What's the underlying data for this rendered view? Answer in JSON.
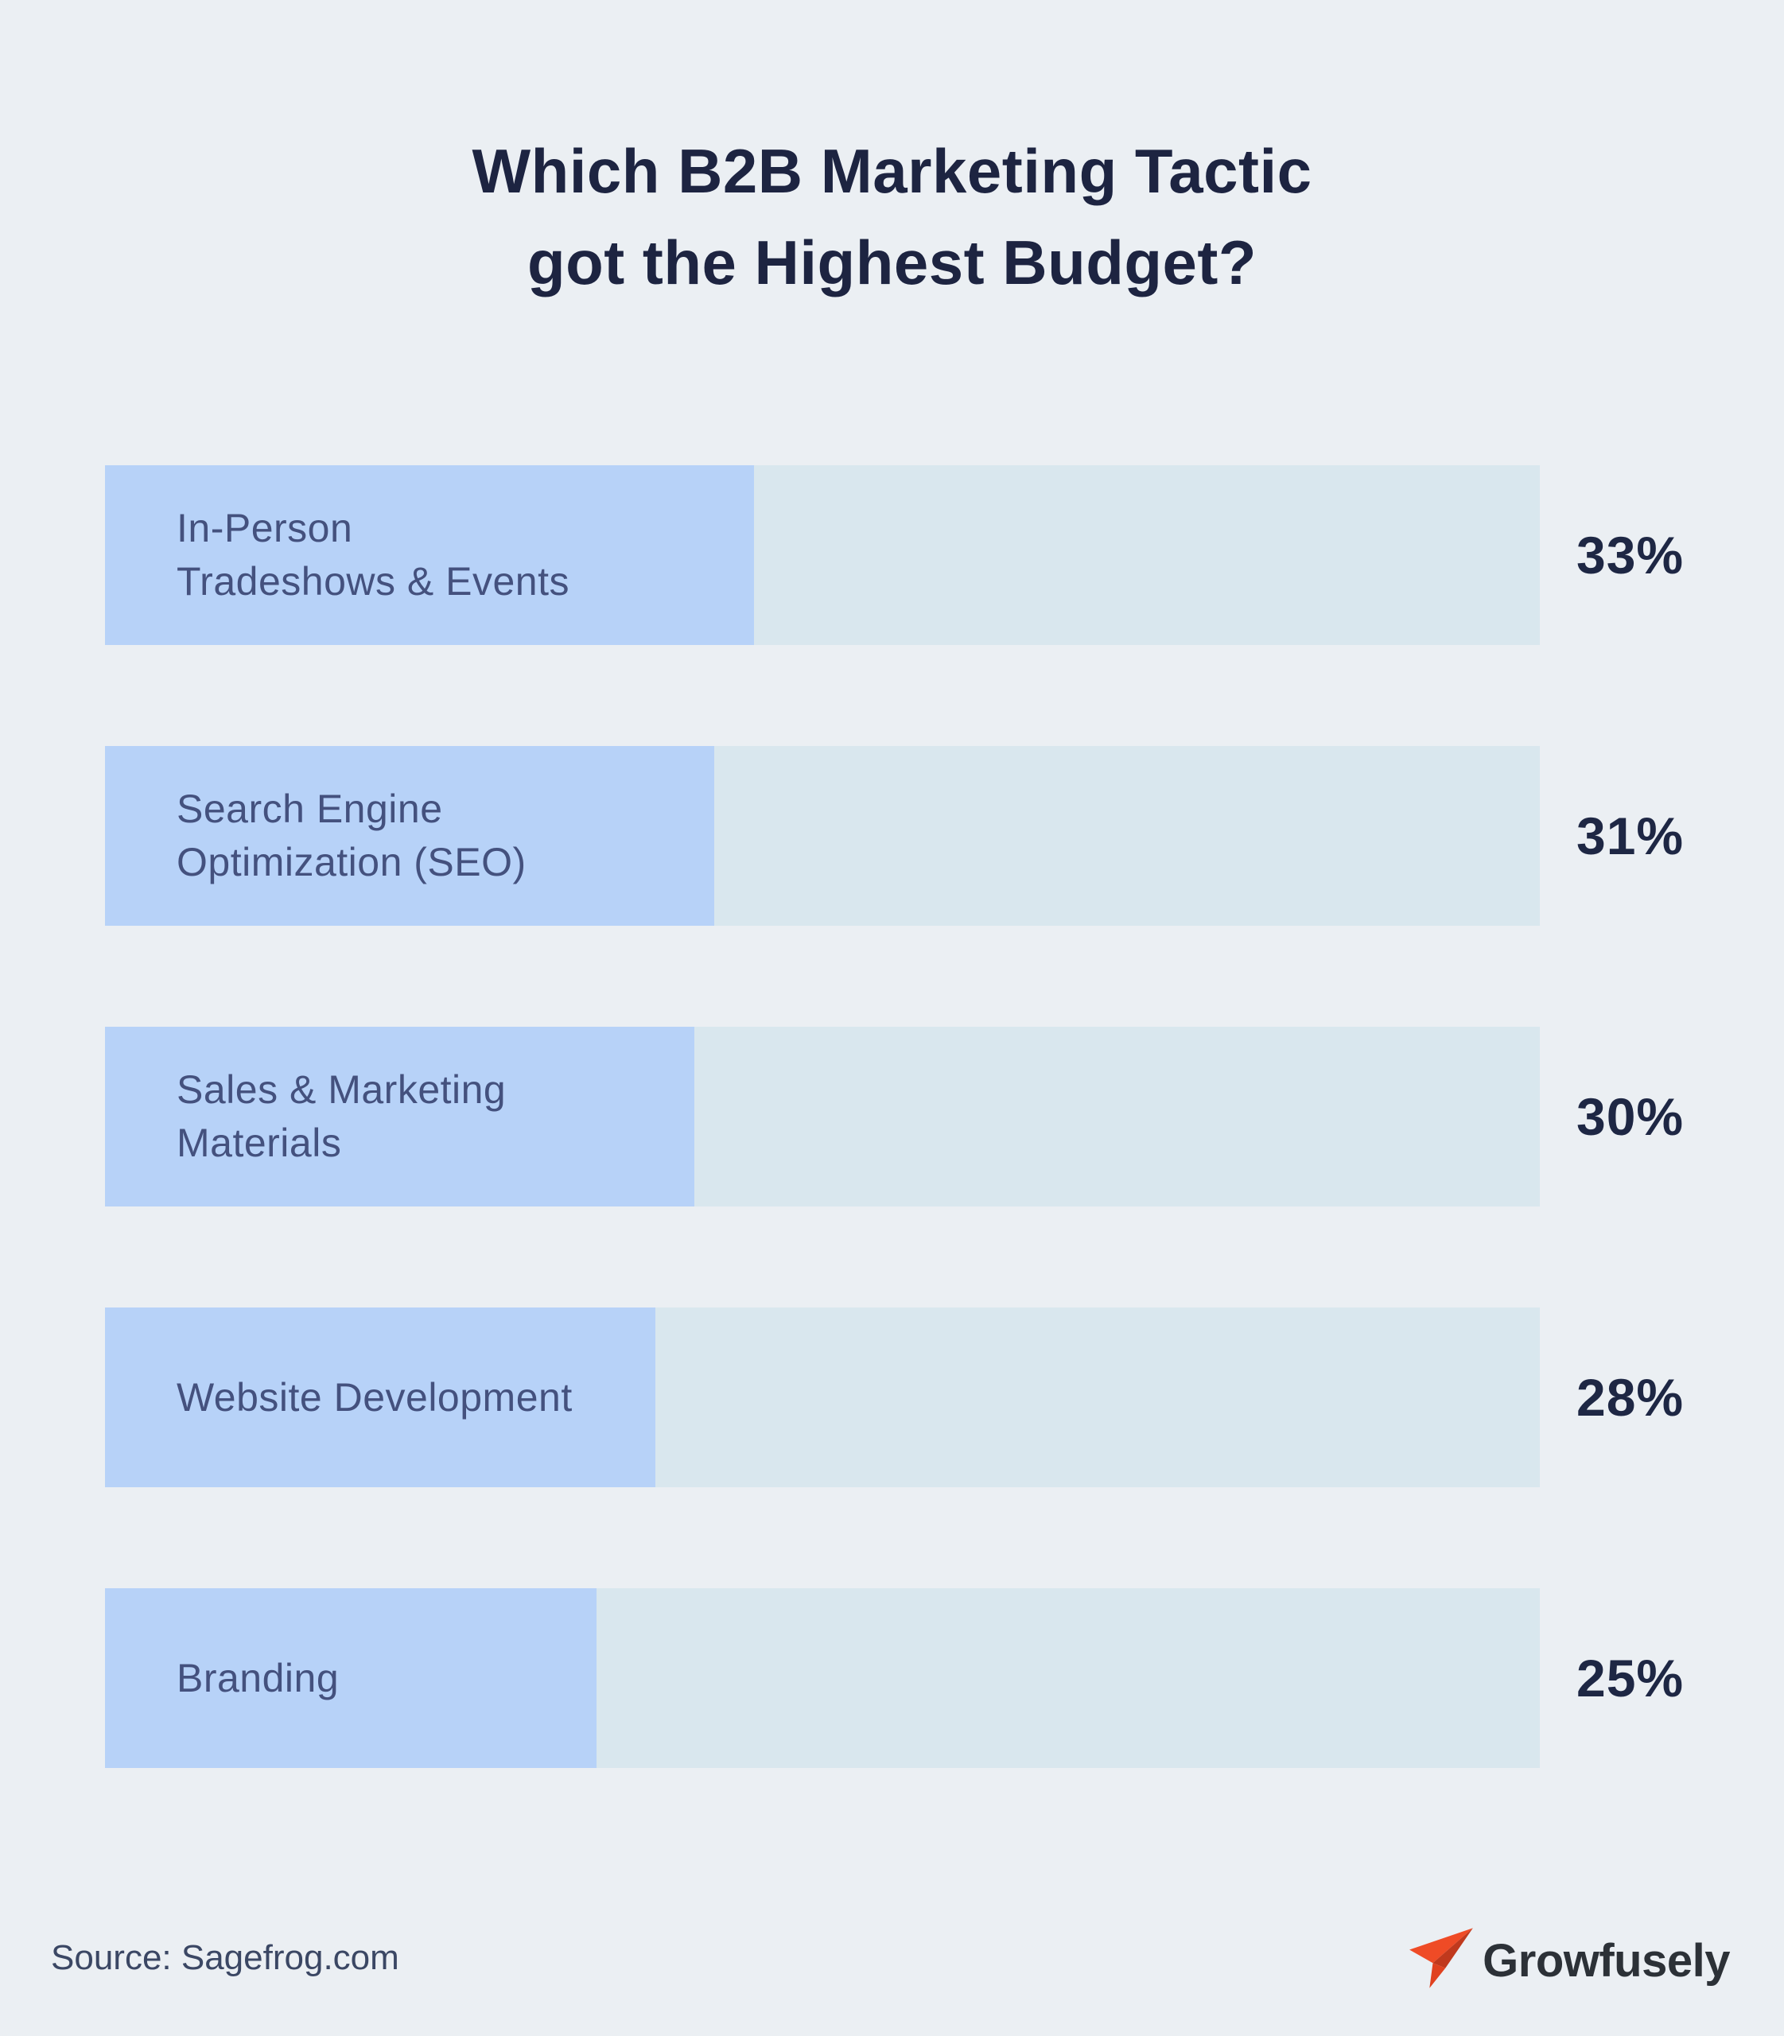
{
  "background": "#ebeff3",
  "title": {
    "line1": "Which B2B Marketing Tactic",
    "line2": "got the Highest Budget?"
  },
  "chart_data": {
    "type": "bar",
    "orientation": "horizontal",
    "title": "Which B2B Marketing Tactic got the Highest Budget?",
    "categories": [
      "In-Person Tradeshows & Events",
      "Search Engine Optimization (SEO)",
      "Sales & Marketing Materials",
      "Website Development",
      "Branding"
    ],
    "categories_display": [
      "In-Person\nTradeshows & Events",
      "Search Engine\nOptimization (SEO)",
      "Sales & Marketing\nMaterials",
      "Website Development",
      "Branding"
    ],
    "values": [
      33,
      31,
      30,
      28,
      25
    ],
    "value_labels": [
      "33%",
      "31%",
      "30%",
      "28%",
      "25%"
    ],
    "axis_max": 73,
    "grid": false,
    "legend": false,
    "value_label_position": "right-of-track",
    "colors": {
      "bar_fill": "#b7d2f8",
      "bar_track": "#d9e7ee",
      "value_text": "#1e2744",
      "category_text": "#44517e",
      "title_text": "#1d2441"
    }
  },
  "footer": {
    "source": "Source: Sagefrog.com",
    "brand": "Growfusely",
    "brand_icon": "paper-plane-icon",
    "brand_text_color": "#2c3137",
    "brand_icon_colors": {
      "wing": "#ef4b26",
      "fold": "#c0391d",
      "tail": "#e0411f"
    }
  }
}
